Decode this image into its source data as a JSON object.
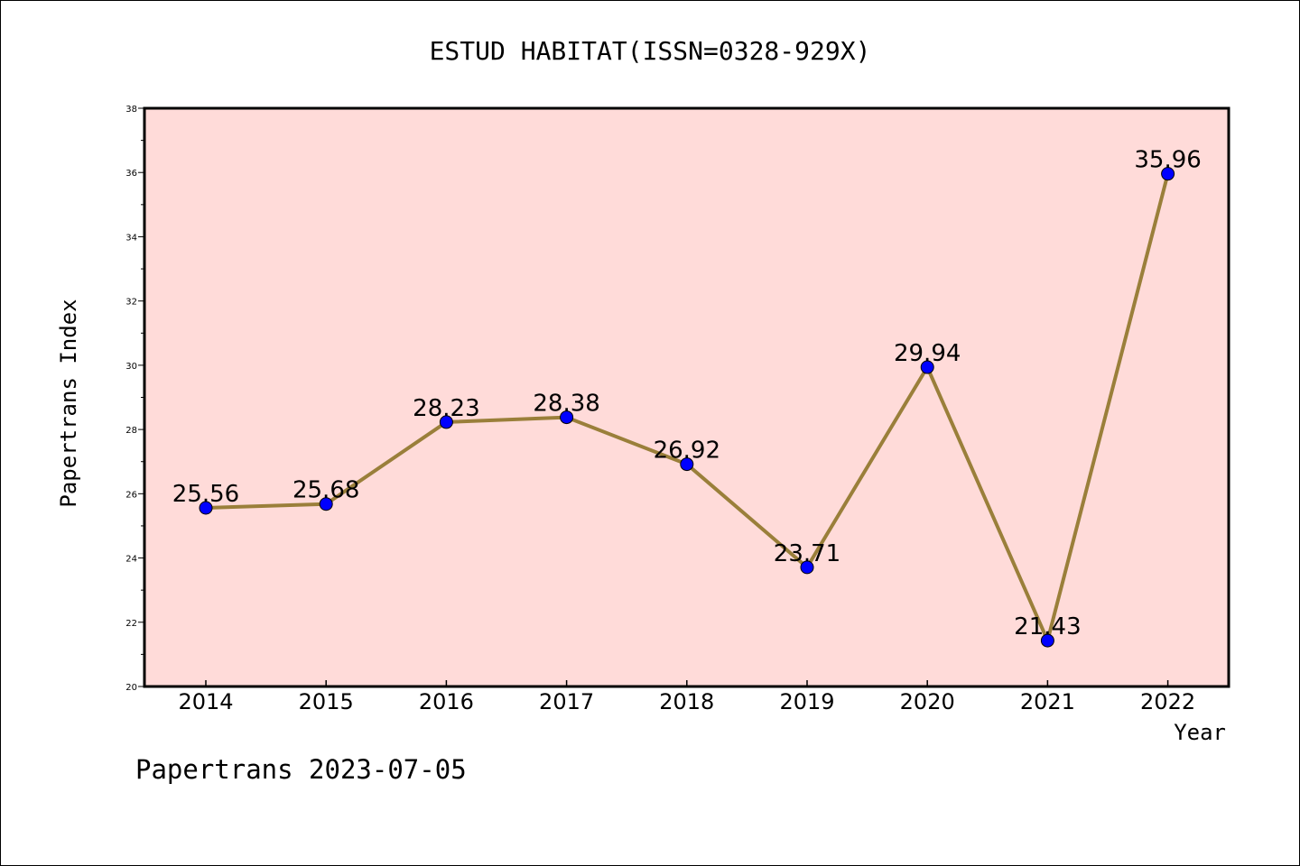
{
  "chart_data": {
    "type": "line",
    "title": "ESTUD HABITAT(ISSN=0328-929X)",
    "xlabel": "Year",
    "ylabel": "Papertrans Index",
    "categories": [
      "2014",
      "2015",
      "2016",
      "2017",
      "2018",
      "2019",
      "2020",
      "2021",
      "2022"
    ],
    "series": [
      {
        "values": [
          25.56,
          25.68,
          28.23,
          28.38,
          26.92,
          23.71,
          29.94,
          21.43,
          35.96
        ],
        "labels": [
          "25.56",
          "25.68",
          "28.23",
          "28.38",
          "26.92",
          "23.71",
          "29.94",
          "21.43",
          "35.96"
        ],
        "line_color": "#9a7f3a",
        "marker_color": "#0000ff"
      }
    ],
    "ylim": [
      20,
      38
    ],
    "yticks": [
      "20",
      "22",
      "24",
      "26",
      "28",
      "30",
      "32",
      "34",
      "36",
      "38"
    ],
    "plot_background": "#ffdbd9",
    "grid": false,
    "legend": "none"
  },
  "footer": {
    "text": "Papertrans 2023-07-05"
  }
}
